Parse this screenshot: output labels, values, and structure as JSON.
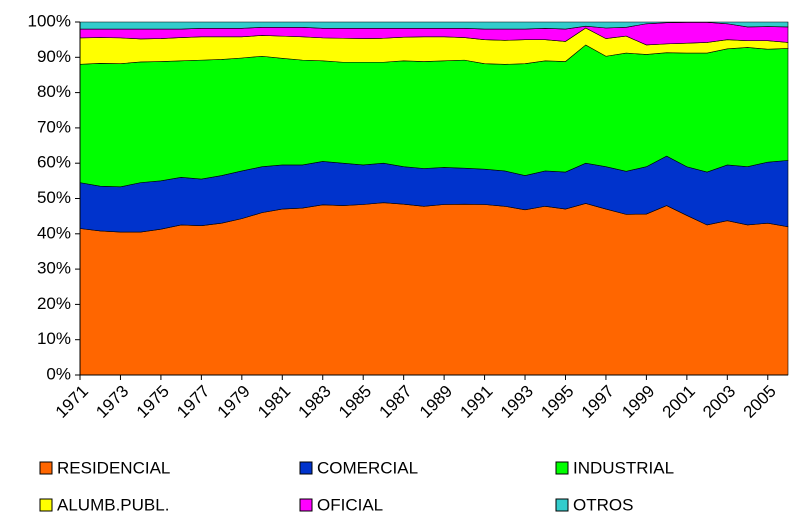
{
  "chart_data": {
    "type": "stacked_area",
    "x": [
      1971,
      1972,
      1973,
      1974,
      1975,
      1976,
      1977,
      1978,
      1979,
      1980,
      1981,
      1982,
      1983,
      1984,
      1985,
      1986,
      1987,
      1988,
      1989,
      1990,
      1991,
      1992,
      1993,
      1994,
      1995,
      1996,
      1997,
      1998,
      1999,
      2000,
      2001,
      2002,
      2003,
      2004,
      2005,
      2006
    ],
    "xlim": [
      1971,
      2006
    ],
    "xticks": [
      1971,
      1973,
      1975,
      1977,
      1979,
      1981,
      1983,
      1985,
      1987,
      1989,
      1991,
      1993,
      1995,
      1997,
      1999,
      2001,
      2003,
      2005
    ],
    "ylim": [
      0,
      100
    ],
    "yticks": [
      {
        "value": 0,
        "label": "0%"
      },
      {
        "value": 10,
        "label": "10%"
      },
      {
        "value": 20,
        "label": "20%"
      },
      {
        "value": 30,
        "label": "30%"
      },
      {
        "value": 40,
        "label": "40%"
      },
      {
        "value": 50,
        "label": "50%"
      },
      {
        "value": 60,
        "label": "60%"
      },
      {
        "value": 70,
        "label": "70%"
      },
      {
        "value": 80,
        "label": "80%"
      },
      {
        "value": 90,
        "label": "90%"
      },
      {
        "value": 100,
        "label": "100%"
      }
    ],
    "series": [
      {
        "name": "RESIDENCIAL",
        "color": "#ff6600",
        "values": [
          41.5,
          40.8,
          40.5,
          40.5,
          41.3,
          42.5,
          42.3,
          43,
          44.3,
          46,
          47,
          47.3,
          48.2,
          48,
          48.3,
          48.8,
          48.4,
          47.8,
          48.3,
          48.4,
          48.3,
          47.8,
          46.8,
          47.8,
          47,
          48.6,
          47,
          45.5,
          45.6,
          48,
          45.2,
          42.5,
          43.7,
          42.5,
          43,
          42
        ]
      },
      {
        "name": "COMERCIAL",
        "color": "#0033cc",
        "values": [
          13,
          12.7,
          12.8,
          14,
          13.7,
          13.5,
          13.2,
          13.5,
          13.5,
          13,
          12.5,
          12.2,
          12.3,
          12,
          11.2,
          11.2,
          10.6,
          10.7,
          10.5,
          10.2,
          10,
          10,
          9.7,
          10,
          10.5,
          11.4,
          12,
          12.2,
          13.4,
          14,
          13.8,
          15,
          15.8,
          16.5,
          17.3,
          18.8
        ]
      },
      {
        "name": "INDUSTRIAL",
        "color": "#00ff00",
        "values": [
          33.5,
          34.8,
          34.9,
          34.2,
          33.8,
          33,
          33.7,
          32.9,
          32,
          31.3,
          30.2,
          29.7,
          28.5,
          28.6,
          29.1,
          28.6,
          30,
          30.3,
          30.2,
          30.6,
          29.9,
          30.2,
          31.7,
          31.2,
          31.3,
          33.5,
          31.3,
          33.5,
          31.8,
          29.3,
          32.2,
          33.7,
          32.9,
          33.8,
          32,
          31.7
        ]
      },
      {
        "name": "ALUMB.PUBL.",
        "color": "#ffff00",
        "values": [
          7.5,
          7.3,
          7.3,
          6.5,
          6.5,
          6.6,
          6.6,
          6.4,
          6,
          5.9,
          6.3,
          6.6,
          6.5,
          6.8,
          6.7,
          6.8,
          6.7,
          7,
          6.8,
          6.4,
          6.8,
          6.8,
          6.8,
          6,
          5.7,
          4.8,
          5,
          4.8,
          2.7,
          2.5,
          2.8,
          3,
          2.6,
          1.9,
          2.4,
          1.7
        ]
      },
      {
        "name": "OFICIAL",
        "color": "#ff00ff",
        "values": [
          2.5,
          2.4,
          2.5,
          2.8,
          2.7,
          2.4,
          2.4,
          2.4,
          2.4,
          2.3,
          2.5,
          2.7,
          2.7,
          2.8,
          2.9,
          2.8,
          2.5,
          2.4,
          2.4,
          2.6,
          3,
          3.2,
          3,
          3.2,
          3.5,
          0.5,
          3,
          2.5,
          6,
          6,
          5.9,
          5.7,
          4.5,
          3.9,
          4,
          4.4
        ]
      },
      {
        "name": "OTROS",
        "color": "#33cccc",
        "values": [
          2,
          2,
          2,
          2,
          2,
          2,
          1.8,
          1.8,
          1.8,
          1.5,
          1.5,
          1.5,
          1.8,
          1.8,
          1.8,
          1.8,
          1.8,
          1.8,
          1.8,
          1.8,
          2,
          2,
          2,
          1.8,
          2,
          1.2,
          1.7,
          1.5,
          0.5,
          0.2,
          0.1,
          0.1,
          0.5,
          1.4,
          1.3,
          1.4
        ]
      }
    ]
  }
}
